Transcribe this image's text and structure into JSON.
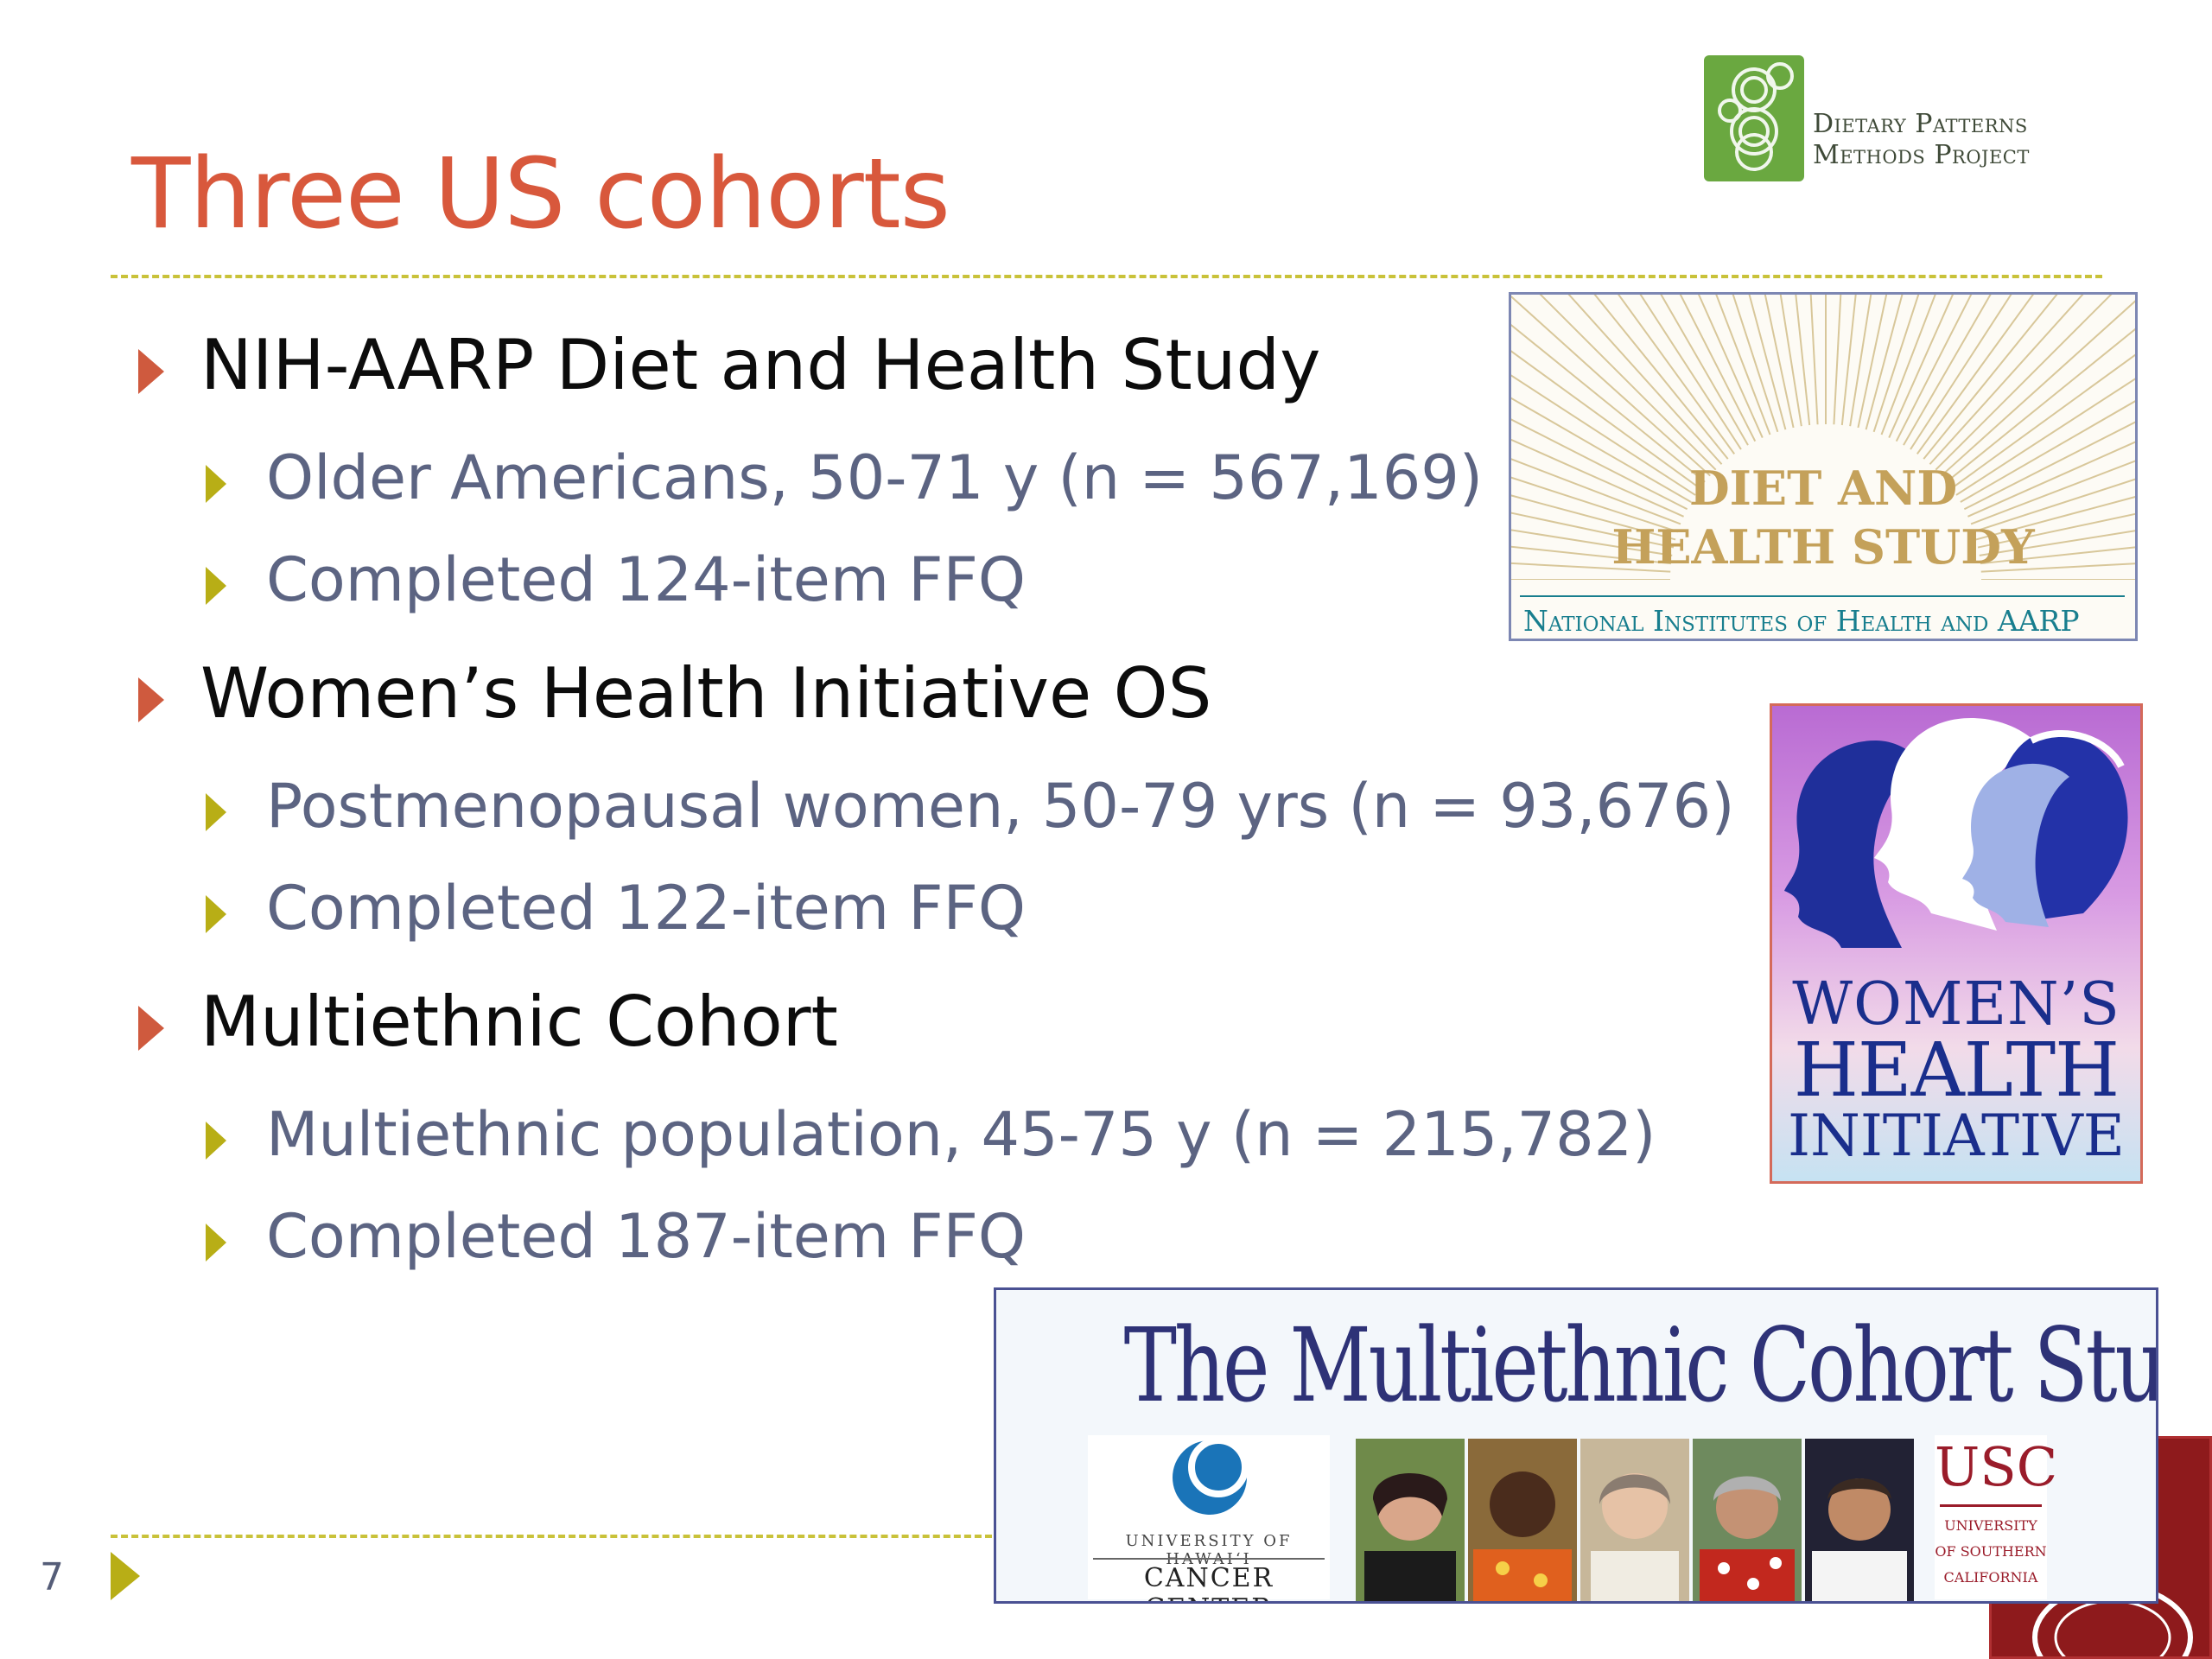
{
  "slide": {
    "title": "Three US cohorts",
    "page_number": "7"
  },
  "bullets": [
    {
      "text": "NIH-AARP Diet and Health Study",
      "subs": [
        "Older Americans, 50-71 y (n = 567,169)",
        "Completed 124-item FFQ"
      ]
    },
    {
      "text": "Women’s Health Initiative OS",
      "subs": [
        "Postmenopausal women,  50-79 yrs (n = 93,676)",
        "Completed 122-item FFQ"
      ]
    },
    {
      "text": "Multiethnic Cohort",
      "subs": [
        "Multiethnic population, 45-75 y (n = 215,782)",
        "Completed 187-item FFQ"
      ]
    }
  ],
  "logos": {
    "dpmp": {
      "line1": "Dietary Patterns",
      "line2": "Methods Project"
    },
    "nih_aarp": {
      "line1": "DIET AND",
      "line2": "HEALTH STUDY",
      "footer": "National Institutes of Health and AARP"
    },
    "whi": {
      "line1": "WOMEN’S",
      "line2": "HEALTH",
      "line3": "INITIATIVE"
    },
    "mec": {
      "title": "The Multiethnic Cohort Study",
      "uhcc_line1": "UNIVERSITY OF HAWAI‘I",
      "uhcc_line2": "CANCER CENTER",
      "usc_big": "USC",
      "usc_line1": "UNIVERSITY",
      "usc_line2": "OF SOUTHERN",
      "usc_line3": "CALIFORNIA"
    }
  },
  "colors": {
    "title": "#d8583c",
    "main_bullet": "#cf5a3e",
    "sub_bullet": "#b8ae16",
    "sub_text": "#5c6482"
  }
}
